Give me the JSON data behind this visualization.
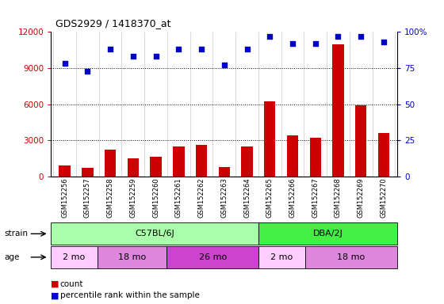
{
  "title": "GDS2929 / 1418370_at",
  "samples": [
    "GSM152256",
    "GSM152257",
    "GSM152258",
    "GSM152259",
    "GSM152260",
    "GSM152261",
    "GSM152262",
    "GSM152263",
    "GSM152264",
    "GSM152265",
    "GSM152266",
    "GSM152267",
    "GSM152268",
    "GSM152269",
    "GSM152270"
  ],
  "counts": [
    900,
    700,
    2200,
    1500,
    1600,
    2500,
    2600,
    800,
    2500,
    6200,
    3400,
    3200,
    11000,
    5900,
    3600
  ],
  "percentile_ranks": [
    78,
    73,
    88,
    83,
    83,
    88,
    88,
    77,
    88,
    97,
    92,
    92,
    97,
    97,
    93
  ],
  "bar_color": "#cc0000",
  "dot_color": "#0000cc",
  "ylim_left": [
    0,
    12000
  ],
  "ylim_right": [
    0,
    100
  ],
  "yticks_left": [
    0,
    3000,
    6000,
    9000,
    12000
  ],
  "yticks_right": [
    0,
    25,
    50,
    75,
    100
  ],
  "strain_groups": [
    {
      "label": "C57BL/6J",
      "start": 0,
      "end": 8,
      "color": "#aaffaa"
    },
    {
      "label": "DBA/2J",
      "start": 9,
      "end": 14,
      "color": "#44ee44"
    }
  ],
  "age_groups": [
    {
      "label": "2 mo",
      "start": 0,
      "end": 1,
      "color": "#ffccff"
    },
    {
      "label": "18 mo",
      "start": 2,
      "end": 4,
      "color": "#dd88dd"
    },
    {
      "label": "26 mo",
      "start": 5,
      "end": 8,
      "color": "#cc44cc"
    },
    {
      "label": "2 mo",
      "start": 9,
      "end": 10,
      "color": "#ffccff"
    },
    {
      "label": "18 mo",
      "start": 11,
      "end": 14,
      "color": "#dd88dd"
    }
  ],
  "left_tick_color": "#cc0000",
  "right_tick_color": "#0000cc"
}
